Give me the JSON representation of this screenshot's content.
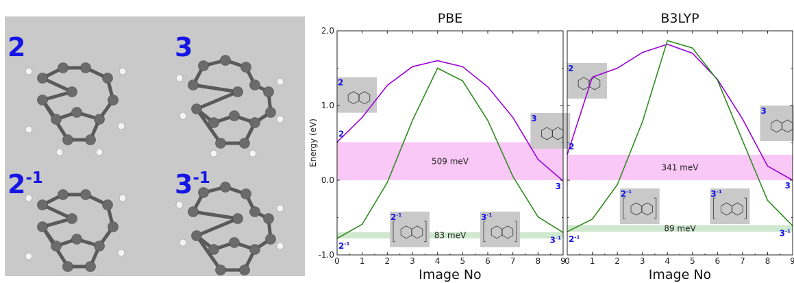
{
  "molecules": {
    "items": [
      {
        "label": "2",
        "sup": ""
      },
      {
        "label": "3",
        "sup": ""
      },
      {
        "label": "2",
        "sup": "-1"
      },
      {
        "label": "3",
        "sup": "-1"
      }
    ],
    "colors": {
      "label": "#1515e6",
      "atom_c": "#6b6b6b",
      "atom_h": "#f4f4f4",
      "panel": "#c9c9c9"
    }
  },
  "chart_data": [
    {
      "type": "line",
      "title": "PBE",
      "xlabel": "Image No",
      "ylabel": "Energy (eV)",
      "xlim": [
        0,
        9
      ],
      "ylim": [
        -1.0,
        2.0
      ],
      "x_ticks": [
        0,
        1,
        2,
        3,
        4,
        5,
        6,
        7,
        8,
        9
      ],
      "y_ticks": [
        -1.0,
        0.0,
        1.0,
        2.0
      ],
      "y_tick_labels": [
        "-1.0",
        "0.0",
        "1.0",
        "2.0"
      ],
      "x": [
        0,
        1,
        2,
        3,
        4,
        5,
        6,
        7,
        8,
        9
      ],
      "series": [
        {
          "color": "#9a00d8",
          "values": [
            0.51,
            0.84,
            1.27,
            1.52,
            1.6,
            1.52,
            1.25,
            0.84,
            0.28,
            -0.01
          ]
        },
        {
          "color": "#2e8b1e",
          "values": [
            -0.78,
            -0.59,
            -0.03,
            0.8,
            1.5,
            1.33,
            0.8,
            0.05,
            -0.49,
            -0.7
          ]
        }
      ],
      "bands": [
        {
          "label": "509 meV",
          "from": 0.0,
          "to": 0.509,
          "color": "#f9c8f6"
        },
        {
          "label": "83 meV",
          "from": -0.78,
          "to": -0.697,
          "color": "#cfe8cf"
        }
      ],
      "point_labels": [
        {
          "text": "2",
          "sup": "",
          "x": 0,
          "y": 0.51
        },
        {
          "text": "3",
          "sup": "",
          "x": 9,
          "y": -0.01
        },
        {
          "text": "2",
          "sup": "-1",
          "x": 0,
          "y": -0.78
        },
        {
          "text": "3",
          "sup": "-1",
          "x": 9,
          "y": -0.7
        }
      ],
      "insets": [
        {
          "label": "2",
          "sup": "",
          "x": 0.0,
          "y": 1.38
        },
        {
          "label": "3",
          "sup": "",
          "x": 7.7,
          "y": 0.9
        },
        {
          "label": "2",
          "sup": "-1",
          "x": 2.1,
          "y": -0.42
        },
        {
          "label": "3",
          "sup": "-1",
          "x": 5.7,
          "y": -0.42
        }
      ]
    },
    {
      "type": "line",
      "title": "B3LYP",
      "xlabel": "Image No",
      "ylabel": "",
      "xlim": [
        0,
        9
      ],
      "ylim": [
        -1.0,
        2.0
      ],
      "x_ticks": [
        0,
        1,
        2,
        3,
        4,
        5,
        6,
        7,
        8,
        9
      ],
      "y_ticks": [],
      "y_tick_labels": [],
      "x": [
        0,
        1,
        2,
        3,
        4,
        5,
        6,
        7,
        8,
        9
      ],
      "series": [
        {
          "color": "#9a00d8",
          "values": [
            0.34,
            1.38,
            1.5,
            1.71,
            1.82,
            1.7,
            1.35,
            0.82,
            0.19,
            0.0
          ]
        },
        {
          "color": "#2e8b1e",
          "values": [
            -0.69,
            -0.52,
            -0.06,
            0.78,
            1.87,
            1.77,
            1.34,
            0.53,
            -0.27,
            -0.61
          ]
        }
      ],
      "bands": [
        {
          "label": "341 meV",
          "from": 0.0,
          "to": 0.341,
          "color": "#f9c8f6"
        },
        {
          "label": "89 meV",
          "from": -0.69,
          "to": -0.6,
          "color": "#cfe8cf"
        }
      ],
      "point_labels": [
        {
          "text": "2",
          "sup": "",
          "x": 0,
          "y": 0.34
        },
        {
          "text": "3",
          "sup": "",
          "x": 9,
          "y": 0.0
        },
        {
          "text": "2",
          "sup": "-1",
          "x": 0,
          "y": -0.69
        },
        {
          "text": "3",
          "sup": "-1",
          "x": 9,
          "y": -0.61
        }
      ],
      "insets": [
        {
          "label": "2",
          "sup": "",
          "x": 0.0,
          "y": 1.57
        },
        {
          "label": "3",
          "sup": "",
          "x": 7.7,
          "y": 1.0
        },
        {
          "label": "2",
          "sup": "-1",
          "x": 2.1,
          "y": -0.11
        },
        {
          "label": "3",
          "sup": "-1",
          "x": 5.7,
          "y": -0.11
        }
      ]
    }
  ]
}
